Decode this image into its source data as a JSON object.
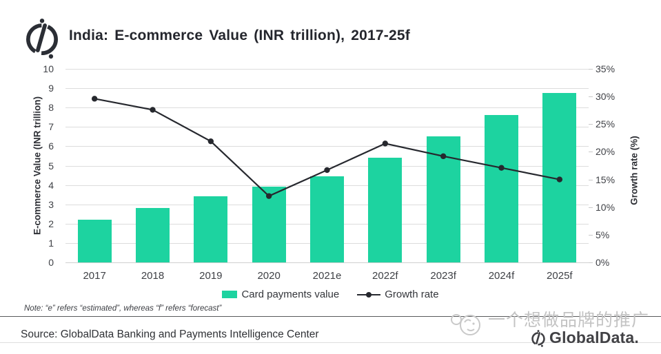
{
  "header": {
    "title": "India: E-commerce Value (INR trillion), 2017-25f"
  },
  "chart_data": {
    "type": "combo-bar-line",
    "categories": [
      "2017",
      "2018",
      "2019",
      "2020",
      "2021e",
      "2022f",
      "2023f",
      "2024f",
      "2025f"
    ],
    "series": [
      {
        "name": "Card payments value",
        "type": "bar",
        "axis": "left",
        "color": "#1dd3a0",
        "values": [
          2.2,
          2.8,
          3.4,
          3.9,
          4.45,
          5.4,
          6.5,
          7.6,
          8.75
        ]
      },
      {
        "name": "Growth rate",
        "type": "line",
        "axis": "right",
        "color": "#26282e",
        "values": [
          29.6,
          27.6,
          21.9,
          12.0,
          16.7,
          21.5,
          19.2,
          17.1,
          15.0
        ]
      }
    ],
    "left_axis": {
      "label": "E-commerce Value (INR trillion)",
      "min": 0,
      "max": 10,
      "step": 1,
      "ticks": [
        0,
        1,
        2,
        3,
        4,
        5,
        6,
        7,
        8,
        9,
        10
      ]
    },
    "right_axis": {
      "label": "Growth rate (%)",
      "min": 0,
      "max": 35,
      "step": 5,
      "suffix": "%",
      "ticks": [
        0,
        5,
        10,
        15,
        20,
        25,
        30,
        35
      ]
    },
    "grid": true,
    "legend_position": "bottom",
    "title": "India: E-commerce Value (INR trillion), 2017-25f"
  },
  "legend": {
    "bar_label": "Card payments value",
    "line_label": "Growth rate"
  },
  "note": "Note: “e” refers “estimated”, whereas “f” refers “forecast”",
  "source": "Source: GlobalData Banking and Payments Intelligence Center",
  "branding": {
    "logo_text": "GlobalData.",
    "watermark_text": "一个想做品牌的推广"
  },
  "colors": {
    "bar": "#1dd3a0",
    "line": "#26282e",
    "grid": "#dcdcdc",
    "title_text": "#24262d",
    "axis_text": "#3f4146",
    "watermark": "#c3c3c3"
  }
}
